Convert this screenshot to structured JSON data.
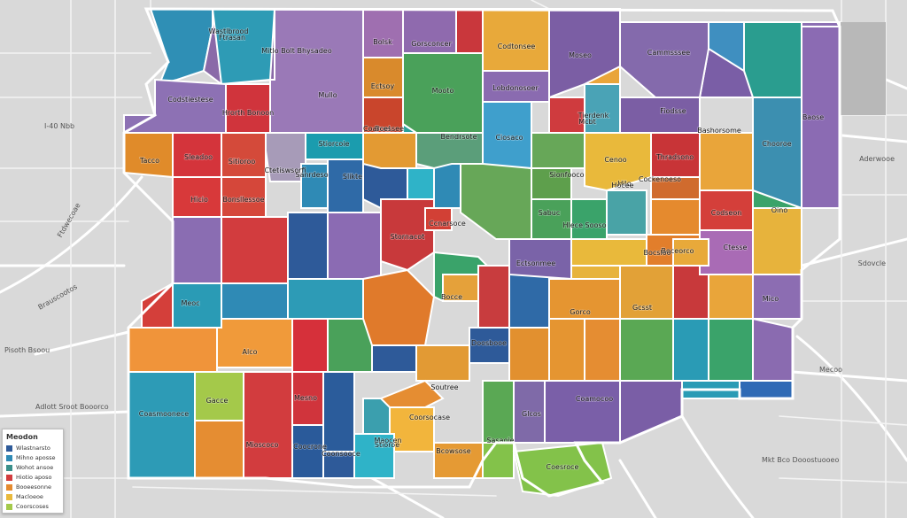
{
  "map": {
    "regions": [
      {
        "label": "Wastlbrood",
        "color": "#2f8fb5"
      },
      {
        "label": "Mitlo Bolt Bhysadeo",
        "color": "#8a6aa8"
      },
      {
        "label": "Mullo",
        "color": "#9a79b7"
      },
      {
        "label": "Bolsk",
        "color": "#9f6fb0"
      },
      {
        "label": "Gorsconcer",
        "color": "#8f6aae"
      },
      {
        "label": "Cammsssee",
        "color": "#846aac"
      },
      {
        "label": "Ftrasan",
        "color": "#2e9bb5"
      },
      {
        "label": "Codstiestese",
        "color": "#8d71b4"
      },
      {
        "label": "Hrorth Bonoon",
        "color": "#d0343c"
      },
      {
        "label": "Mooto",
        "color": "#4aa15a"
      },
      {
        "label": "Ctetiswsorfi",
        "color": "#a79bb8"
      },
      {
        "label": "Ectsoy",
        "color": "#d98a2c"
      },
      {
        "label": "Boel",
        "color": "#c9452c"
      },
      {
        "label": "Codtonsee",
        "color": "#e8a93a"
      },
      {
        "label": "Stiorcoie",
        "color": "#1b9cae"
      },
      {
        "label": "Bendrsote",
        "color": "#5b9e7a"
      },
      {
        "label": "Tierdenk",
        "color": "#4aa3b6"
      },
      {
        "label": "Sleadoo",
        "color": "#d4343b"
      },
      {
        "label": "Tacco",
        "color": "#e08b2a"
      },
      {
        "label": "Sitioroo",
        "color": "#d44a3a"
      },
      {
        "label": "Lobdonosoer",
        "color": "#8a6bb0"
      },
      {
        "label": "Ciosaco",
        "color": "#3f9fcc"
      },
      {
        "label": "Fiodsse",
        "color": "#7b5ea4"
      },
      {
        "label": "Slikte",
        "color": "#2f6aa7"
      },
      {
        "label": "Sanrdeso",
        "color": "#2f8ab5"
      },
      {
        "label": "Thradsono",
        "color": "#c83437"
      },
      {
        "label": "Hicio",
        "color": "#d8393a"
      },
      {
        "label": "Bonsllessoe",
        "color": "#d5473a"
      },
      {
        "label": "Moseo",
        "color": "#7b5ea4"
      },
      {
        "label": "Coarcessee",
        "color": "#e39a33"
      },
      {
        "label": "Mcbt",
        "color": "#cf3b3e"
      },
      {
        "label": "Sabuc",
        "color": "#5e9f4c"
      },
      {
        "label": "Stornacot",
        "color": "#c8393b"
      },
      {
        "label": "Bashorsome",
        "color": "#e9a53a"
      },
      {
        "label": "Sionfooco",
        "color": "#67a758"
      },
      {
        "label": "Cenoo",
        "color": "#e9b93b"
      },
      {
        "label": "Hilo",
        "color": "#d06b2e"
      },
      {
        "label": "Chooroe",
        "color": "#3c8fb0"
      },
      {
        "label": "Baose",
        "color": "#8b6bb3"
      },
      {
        "label": "Codseon",
        "color": "#d43f3a"
      },
      {
        "label": "Cockenoeso",
        "color": "#e58a2e"
      },
      {
        "label": "Hocee",
        "color": "#49a3a6"
      },
      {
        "label": "Boceorco",
        "color": "#e27e2b"
      },
      {
        "label": "Ccnarsoce",
        "color": "#d24035"
      },
      {
        "label": "Hlece Sooso",
        "color": "#3aa36a"
      },
      {
        "label": "Ectsonmee",
        "color": "#7a63a8"
      },
      {
        "label": "Ctesse",
        "color": "#a96bb5"
      },
      {
        "label": "Oino",
        "color": "#e7b33c"
      },
      {
        "label": "Mico",
        "color": "#8c6db2"
      },
      {
        "label": "Gorco",
        "color": "#e59531"
      },
      {
        "label": "Gcsst",
        "color": "#e2a137"
      },
      {
        "label": "Bocsloo",
        "color": "#e8a93a"
      },
      {
        "label": "Alco",
        "color": "#f09a3a"
      },
      {
        "label": "Mesno",
        "color": "#d0343c"
      },
      {
        "label": "Doosbooe",
        "color": "#2e5a99"
      },
      {
        "label": "Bocce",
        "color": "#e5a13a"
      },
      {
        "label": "Maocen",
        "color": "#3b9fae"
      },
      {
        "label": "Coamocoo",
        "color": "#7a5fa8"
      },
      {
        "label": "Coonsooce",
        "color": "#2b5c9b"
      },
      {
        "label": "Sasaoie",
        "color": "#5aa854"
      },
      {
        "label": "Coorsocase",
        "color": "#f2b53c"
      },
      {
        "label": "Coasmoonece",
        "color": "#2d9bb6"
      },
      {
        "label": "Gacce",
        "color": "#a4c94a"
      },
      {
        "label": "Soutree",
        "color": "#e58d32"
      },
      {
        "label": "Bcowsose",
        "color": "#e59a34"
      },
      {
        "label": "Stioroe",
        "color": "#2fb3c8"
      },
      {
        "label": "Coocrone",
        "color": "#2a5a9a"
      },
      {
        "label": "Mioscoco",
        "color": "#d23c3e"
      },
      {
        "label": "Glcos",
        "color": "#7f6aa8"
      },
      {
        "label": "Meoc",
        "color": "#2a9bb5"
      },
      {
        "label": "Coesroce",
        "color": "#83c24a"
      }
    ],
    "places": [
      {
        "label": "I-40 Nbb"
      },
      {
        "label": "Brauscootos"
      },
      {
        "label": "Pisoth Bsoou"
      },
      {
        "label": "Adlott Sroot Booorco"
      },
      {
        "label": "Mkt Bco Dooostuooeo"
      },
      {
        "label": "Ftdwecoae"
      },
      {
        "label": "Aderwooe"
      },
      {
        "label": "Sdovcle"
      },
      {
        "label": "Mecoo"
      }
    ]
  },
  "legend": {
    "title": "Meodon",
    "items": [
      {
        "label": "Wlastnarsto",
        "color": "#2e5a99"
      },
      {
        "label": "Mihno aposse",
        "color": "#2f8ab5"
      },
      {
        "label": "Wohot ansoe",
        "color": "#3a8f8a"
      },
      {
        "label": "Hiotio aposo",
        "color": "#d23c3e"
      },
      {
        "label": "Booeesonne",
        "color": "#e58a2e"
      },
      {
        "label": "Macloeoe",
        "color": "#e9b93b"
      },
      {
        "label": "Coorscoses",
        "color": "#a4c94a"
      }
    ]
  }
}
